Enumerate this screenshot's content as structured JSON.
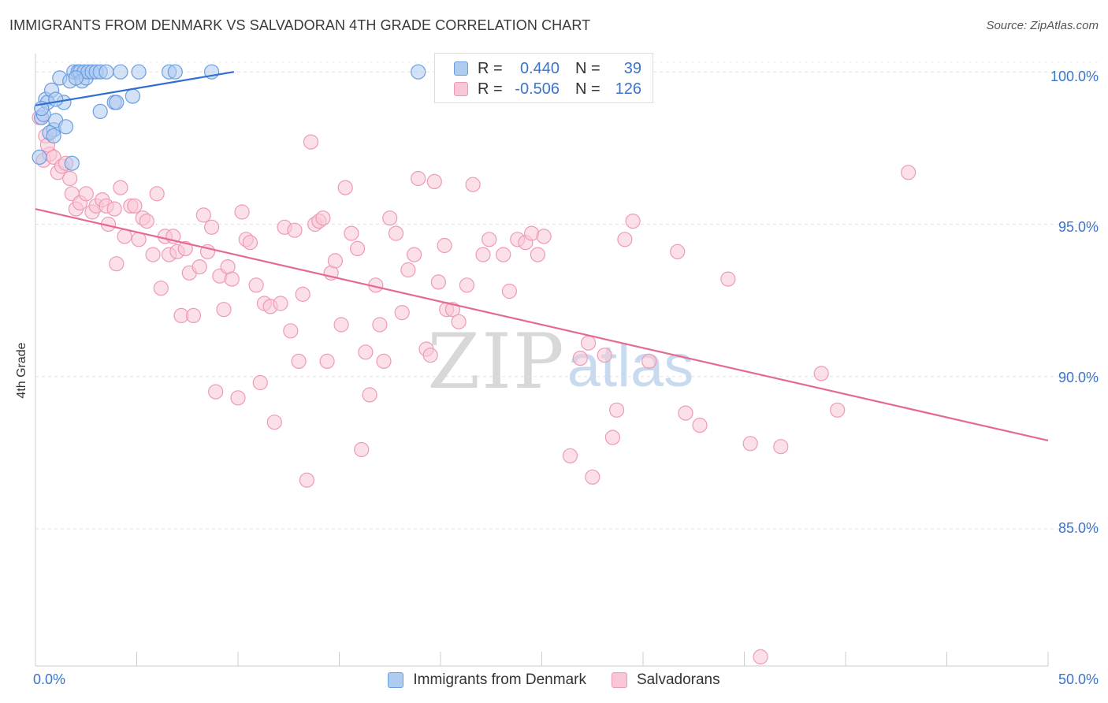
{
  "title": "IMMIGRANTS FROM DENMARK VS SALVADORAN 4TH GRADE CORRELATION CHART",
  "source": "Source: ZipAtlas.com",
  "watermark": {
    "zip": "ZIP",
    "atlas": "atlas"
  },
  "legend": {
    "r_label": "R =",
    "n_label": "N =",
    "series": [
      {
        "name": "Immigrants from Denmark",
        "r": "0.440",
        "n": "39",
        "fill": "#aecbf0",
        "stroke": "#6a9ee0"
      },
      {
        "name": "Salvadorans",
        "r": "-0.506",
        "n": "126",
        "fill": "#f9c6d6",
        "stroke": "#ee9ab6"
      }
    ]
  },
  "chart_data": {
    "type": "scatter",
    "title": "IMMIGRANTS FROM DENMARK VS SALVADORAN 4TH GRADE CORRELATION CHART",
    "xlabel": "",
    "ylabel": "4th Grade",
    "xlim": [
      0,
      50
    ],
    "ylim": [
      80.5,
      100.6
    ],
    "x_tick_labels": [
      "0.0%",
      "50.0%"
    ],
    "y_ticks": [
      85,
      90,
      95,
      100
    ],
    "y_tick_labels": [
      "85.0%",
      "90.0%",
      "95.0%",
      "100.0%"
    ],
    "series": [
      {
        "name": "Immigrants from Denmark",
        "color": "#6a9ee0",
        "fill": "#aecbf0",
        "trend": {
          "x0": 0.0,
          "y0": 98.9,
          "x1": 9.8,
          "y1": 100.0,
          "color": "#2f6fcf"
        },
        "points": [
          [
            0.2,
            97.2
          ],
          [
            0.3,
            98.5
          ],
          [
            0.5,
            99.1
          ],
          [
            0.4,
            98.6
          ],
          [
            0.6,
            99.0
          ],
          [
            0.8,
            99.4
          ],
          [
            0.9,
            98.1
          ],
          [
            1.0,
            98.4
          ],
          [
            1.2,
            99.8
          ],
          [
            1.4,
            99.0
          ],
          [
            1.5,
            98.2
          ],
          [
            1.7,
            99.7
          ],
          [
            1.8,
            97.0
          ],
          [
            1.9,
            100.0
          ],
          [
            2.1,
            100.0
          ],
          [
            2.2,
            100.0
          ],
          [
            2.4,
            100.0
          ],
          [
            2.3,
            99.7
          ],
          [
            2.5,
            99.8
          ],
          [
            2.6,
            100.0
          ],
          [
            2.8,
            100.0
          ],
          [
            3.0,
            100.0
          ],
          [
            3.2,
            100.0
          ],
          [
            3.5,
            100.0
          ],
          [
            3.2,
            98.7
          ],
          [
            3.9,
            99.0
          ],
          [
            4.0,
            99.0
          ],
          [
            4.2,
            100.0
          ],
          [
            4.8,
            99.2
          ],
          [
            5.1,
            100.0
          ],
          [
            6.6,
            100.0
          ],
          [
            6.9,
            100.0
          ],
          [
            8.7,
            100.0
          ],
          [
            18.9,
            100.0
          ],
          [
            0.3,
            98.8
          ],
          [
            0.7,
            98.0
          ],
          [
            0.9,
            97.9
          ],
          [
            2.0,
            99.8
          ],
          [
            1.0,
            99.1
          ]
        ]
      },
      {
        "name": "Salvadorans",
        "color": "#ee9ab6",
        "fill": "#f9c6d6",
        "trend": {
          "x0": 0.0,
          "y0": 95.5,
          "x1": 50.0,
          "y1": 87.9,
          "color": "#e46a92"
        },
        "points": [
          [
            0.2,
            98.5
          ],
          [
            0.4,
            97.1
          ],
          [
            0.5,
            97.9
          ],
          [
            0.7,
            97.3
          ],
          [
            0.9,
            97.2
          ],
          [
            1.1,
            96.7
          ],
          [
            1.3,
            96.9
          ],
          [
            1.5,
            97.0
          ],
          [
            1.7,
            96.5
          ],
          [
            1.8,
            96.0
          ],
          [
            2.0,
            95.5
          ],
          [
            2.2,
            95.7
          ],
          [
            2.5,
            96.0
          ],
          [
            2.8,
            95.4
          ],
          [
            3.0,
            95.6
          ],
          [
            3.3,
            95.8
          ],
          [
            3.5,
            95.6
          ],
          [
            3.6,
            95.0
          ],
          [
            3.9,
            95.5
          ],
          [
            4.0,
            93.7
          ],
          [
            4.2,
            96.2
          ],
          [
            4.4,
            94.6
          ],
          [
            4.7,
            95.6
          ],
          [
            4.9,
            95.6
          ],
          [
            5.1,
            94.5
          ],
          [
            5.3,
            95.2
          ],
          [
            5.5,
            95.1
          ],
          [
            5.8,
            94.0
          ],
          [
            6.0,
            96.0
          ],
          [
            6.2,
            92.9
          ],
          [
            6.4,
            94.6
          ],
          [
            6.6,
            94.0
          ],
          [
            6.8,
            94.6
          ],
          [
            7.0,
            94.1
          ],
          [
            7.2,
            92.0
          ],
          [
            7.4,
            94.2
          ],
          [
            7.6,
            93.4
          ],
          [
            7.8,
            92.0
          ],
          [
            8.1,
            93.6
          ],
          [
            8.3,
            95.3
          ],
          [
            8.5,
            94.1
          ],
          [
            8.7,
            94.9
          ],
          [
            8.9,
            89.5
          ],
          [
            9.1,
            93.3
          ],
          [
            9.3,
            92.2
          ],
          [
            9.5,
            93.6
          ],
          [
            9.7,
            93.2
          ],
          [
            10.0,
            89.3
          ],
          [
            10.2,
            95.4
          ],
          [
            10.4,
            94.5
          ],
          [
            10.6,
            94.4
          ],
          [
            10.9,
            93.0
          ],
          [
            11.1,
            89.8
          ],
          [
            11.3,
            92.4
          ],
          [
            11.6,
            92.3
          ],
          [
            11.8,
            88.5
          ],
          [
            12.1,
            92.4
          ],
          [
            12.3,
            94.9
          ],
          [
            12.6,
            91.5
          ],
          [
            12.8,
            94.8
          ],
          [
            13.0,
            90.5
          ],
          [
            13.2,
            92.7
          ],
          [
            13.4,
            86.6
          ],
          [
            13.6,
            97.7
          ],
          [
            13.8,
            95.0
          ],
          [
            14.0,
            95.1
          ],
          [
            14.2,
            95.2
          ],
          [
            14.4,
            90.5
          ],
          [
            14.6,
            93.4
          ],
          [
            14.8,
            93.8
          ],
          [
            15.1,
            91.7
          ],
          [
            15.3,
            96.2
          ],
          [
            15.6,
            94.7
          ],
          [
            15.9,
            94.2
          ],
          [
            16.1,
            87.6
          ],
          [
            16.3,
            90.8
          ],
          [
            16.5,
            89.4
          ],
          [
            16.8,
            93.0
          ],
          [
            17.0,
            91.7
          ],
          [
            17.2,
            90.5
          ],
          [
            17.5,
            95.2
          ],
          [
            17.8,
            94.7
          ],
          [
            18.1,
            92.1
          ],
          [
            18.4,
            93.5
          ],
          [
            18.7,
            94.0
          ],
          [
            18.9,
            96.5
          ],
          [
            19.3,
            90.9
          ],
          [
            19.5,
            90.7
          ],
          [
            19.7,
            96.4
          ],
          [
            19.9,
            93.1
          ],
          [
            20.2,
            94.3
          ],
          [
            20.3,
            92.2
          ],
          [
            20.6,
            92.2
          ],
          [
            20.9,
            91.8
          ],
          [
            21.3,
            93.0
          ],
          [
            21.6,
            96.3
          ],
          [
            22.1,
            94.0
          ],
          [
            22.4,
            94.5
          ],
          [
            23.1,
            94.0
          ],
          [
            23.4,
            92.8
          ],
          [
            23.8,
            94.5
          ],
          [
            24.2,
            94.4
          ],
          [
            24.5,
            94.7
          ],
          [
            24.8,
            94.0
          ],
          [
            25.1,
            94.6
          ],
          [
            26.4,
            87.4
          ],
          [
            26.9,
            90.6
          ],
          [
            27.3,
            91.1
          ],
          [
            27.5,
            86.7
          ],
          [
            28.1,
            90.7
          ],
          [
            28.5,
            88.0
          ],
          [
            28.7,
            88.9
          ],
          [
            29.1,
            94.5
          ],
          [
            29.5,
            95.1
          ],
          [
            30.3,
            90.5
          ],
          [
            31.7,
            94.1
          ],
          [
            32.1,
            88.8
          ],
          [
            32.8,
            88.4
          ],
          [
            34.2,
            93.2
          ],
          [
            35.3,
            87.8
          ],
          [
            35.8,
            80.8
          ],
          [
            36.8,
            87.7
          ],
          [
            38.8,
            90.1
          ],
          [
            39.6,
            88.9
          ],
          [
            43.1,
            96.7
          ],
          [
            0.6,
            97.6
          ]
        ]
      }
    ]
  }
}
